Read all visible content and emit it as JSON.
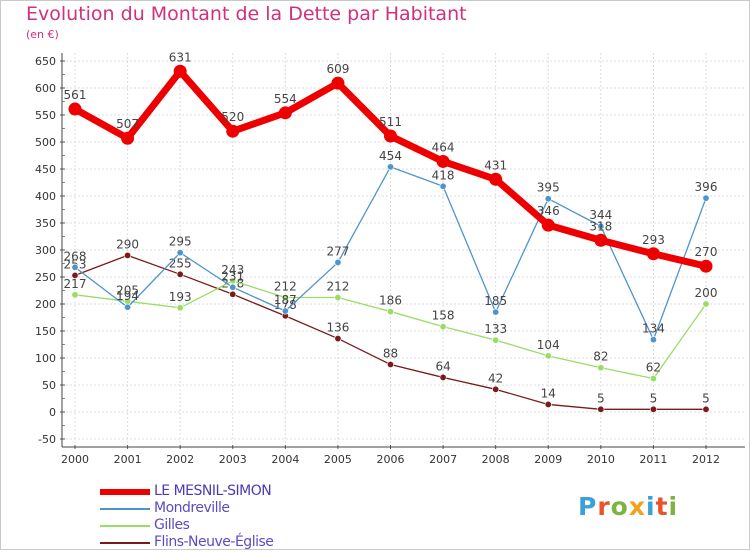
{
  "chart_data": {
    "type": "line",
    "title": "Evolution du Montant de la Dette par Habitant",
    "subtitle": "(en €)",
    "categories": [
      "2000",
      "2001",
      "2002",
      "2003",
      "2004",
      "2005",
      "2006",
      "2007",
      "2008",
      "2009",
      "2010",
      "2011",
      "2012"
    ],
    "ylim": [
      -50,
      650
    ],
    "yticks": [
      -50,
      0,
      50,
      100,
      150,
      200,
      250,
      300,
      350,
      400,
      450,
      500,
      550,
      600,
      650
    ],
    "grid": true,
    "legend_position": "bottom-left",
    "series": [
      {
        "name": "LE MESNIL-SIMON",
        "color": "#ee0000",
        "values": [
          561,
          507,
          631,
          520,
          554,
          609,
          511,
          464,
          431,
          346,
          318,
          293,
          270
        ]
      },
      {
        "name": "Mondreville",
        "color": "#4f94cd",
        "values": [
          268,
          194,
          295,
          231,
          187,
          277,
          454,
          418,
          185,
          395,
          344,
          134,
          396
        ]
      },
      {
        "name": "Gilles",
        "color": "#99dd66",
        "values": [
          217,
          205,
          193,
          243,
          212,
          212,
          186,
          158,
          133,
          104,
          82,
          62,
          200
        ]
      },
      {
        "name": "Flins-Neuve-Église",
        "color": "#7a1a1a",
        "values": [
          253,
          290,
          255,
          218,
          178,
          136,
          88,
          64,
          42,
          14,
          5,
          5,
          5
        ]
      }
    ]
  },
  "logo": {
    "letters": [
      "P",
      "r",
      "o",
      "x",
      "i",
      "t",
      "i"
    ],
    "colors": [
      "#3aa0d8",
      "#e8532a",
      "#7cb342",
      "#f2a31b",
      "#3aa0d8",
      "#e8532a",
      "#7cb342"
    ]
  }
}
